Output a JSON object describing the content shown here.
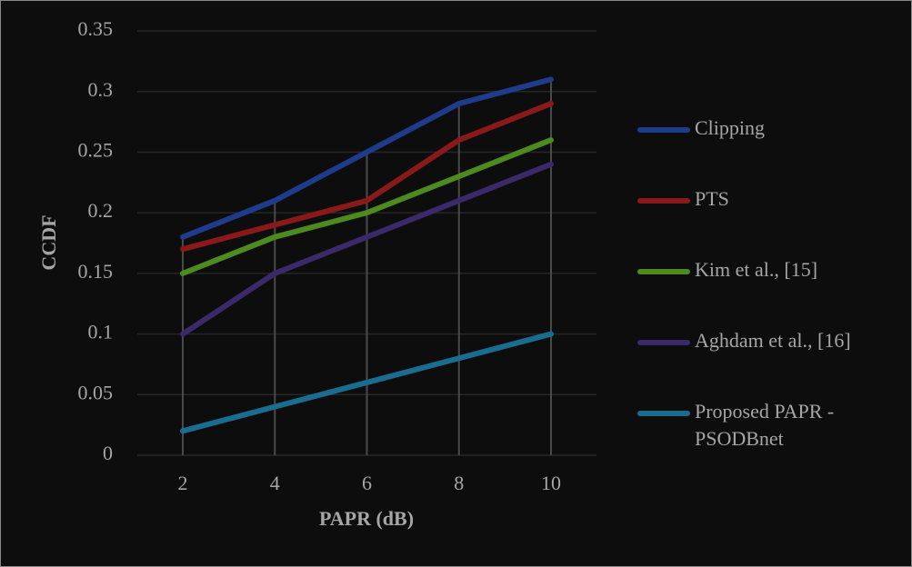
{
  "chart_data": {
    "type": "line",
    "x_label": "PAPR (dB)",
    "y_label": "CCDF",
    "categories": [
      "2",
      "4",
      "6",
      "8",
      "10"
    ],
    "series": [
      {
        "name": "Clipping",
        "color": "#1f3c8c",
        "values": [
          0.18,
          0.21,
          0.25,
          0.29,
          0.31
        ]
      },
      {
        "name": "PTS",
        "color": "#8a1a1a",
        "values": [
          0.17,
          0.19,
          0.21,
          0.26,
          0.29
        ]
      },
      {
        "name": "Kim et al., [15]",
        "color": "#4d8a1f",
        "values": [
          0.15,
          0.18,
          0.2,
          0.23,
          0.26
        ]
      },
      {
        "name": "Aghdam et al., [16]",
        "color": "#3a2a6a",
        "values": [
          0.1,
          0.15,
          0.18,
          0.21,
          0.24
        ]
      },
      {
        "name": "Proposed PAPR - PSODBnet",
        "color": "#1a6d8e",
        "values": [
          0.02,
          0.04,
          0.06,
          0.08,
          0.1
        ]
      }
    ],
    "ylim": [
      0,
      0.35
    ],
    "yticks": [
      0,
      0.05,
      0.1,
      0.15,
      0.2,
      0.25,
      0.3,
      0.35
    ],
    "grid": true,
    "drop_lines": true,
    "legend": "right"
  }
}
